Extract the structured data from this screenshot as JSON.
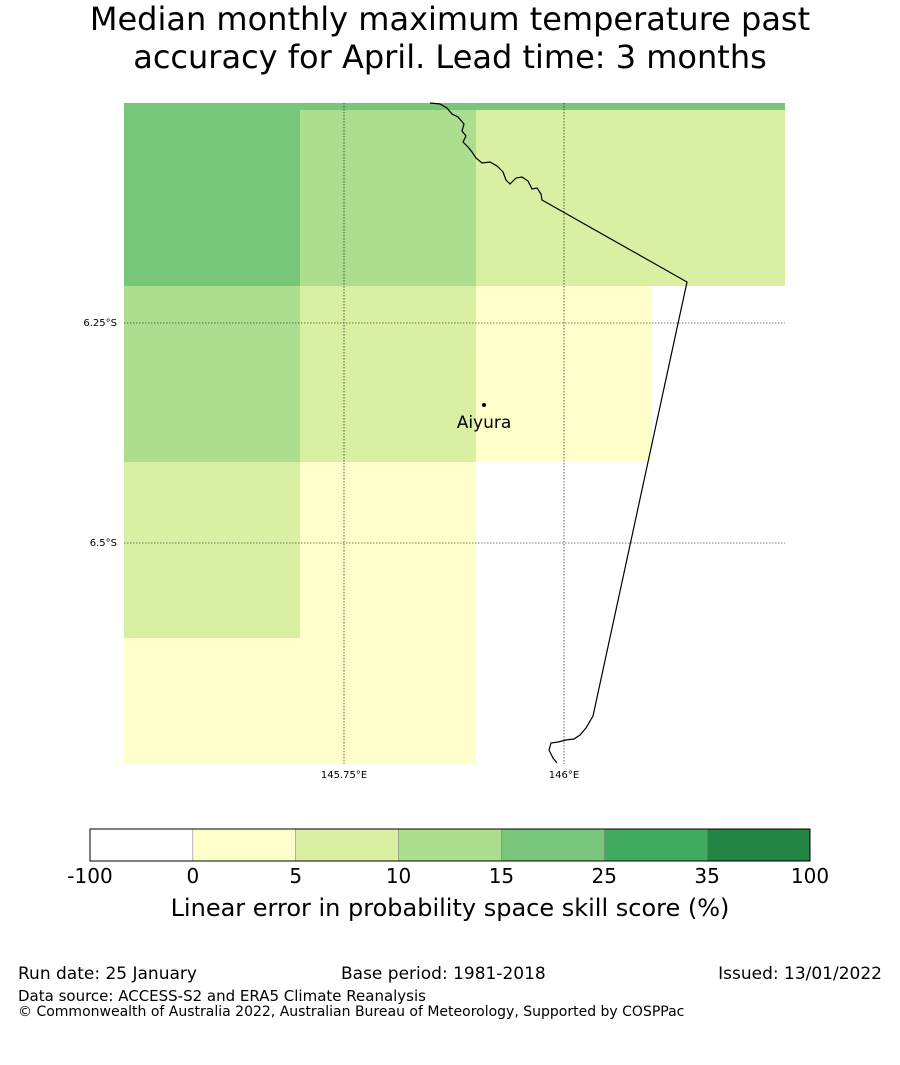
{
  "title": {
    "line1": "Median monthly maximum temperature past",
    "line2": "accuracy for April. Lead time: 3 months"
  },
  "map": {
    "place_label": "Aiyura",
    "lat_labels": [
      "6.25°S",
      "6.5°S"
    ],
    "lon_labels": [
      "145.75°E",
      "146°E"
    ]
  },
  "colorbar": {
    "bins": [
      {
        "label": "-100",
        "color": "#ffffff"
      },
      {
        "label": "0",
        "color": "#ffffcc"
      },
      {
        "label": "5",
        "color": "#d9f0a3"
      },
      {
        "label": "10",
        "color": "#addd8e"
      },
      {
        "label": "15",
        "color": "#78c679"
      },
      {
        "label": "25",
        "color": "#41ab5d"
      },
      {
        "label": "35",
        "color": "#238443"
      }
    ],
    "last_label": "100",
    "title": "Linear error in probability space skill score (%)"
  },
  "footer": {
    "run_date": "Run date: 25 January",
    "base_period": "Base period: 1981-2018",
    "issued": "Issued: 13/01/2022",
    "data_source": "Data source: ACCESS-S2 and ERA5 Climate Reanalysis",
    "copyright": "© Commonwealth of Australia 2022, Australian Bureau of Meteorology, Supported by COSPPac"
  }
}
